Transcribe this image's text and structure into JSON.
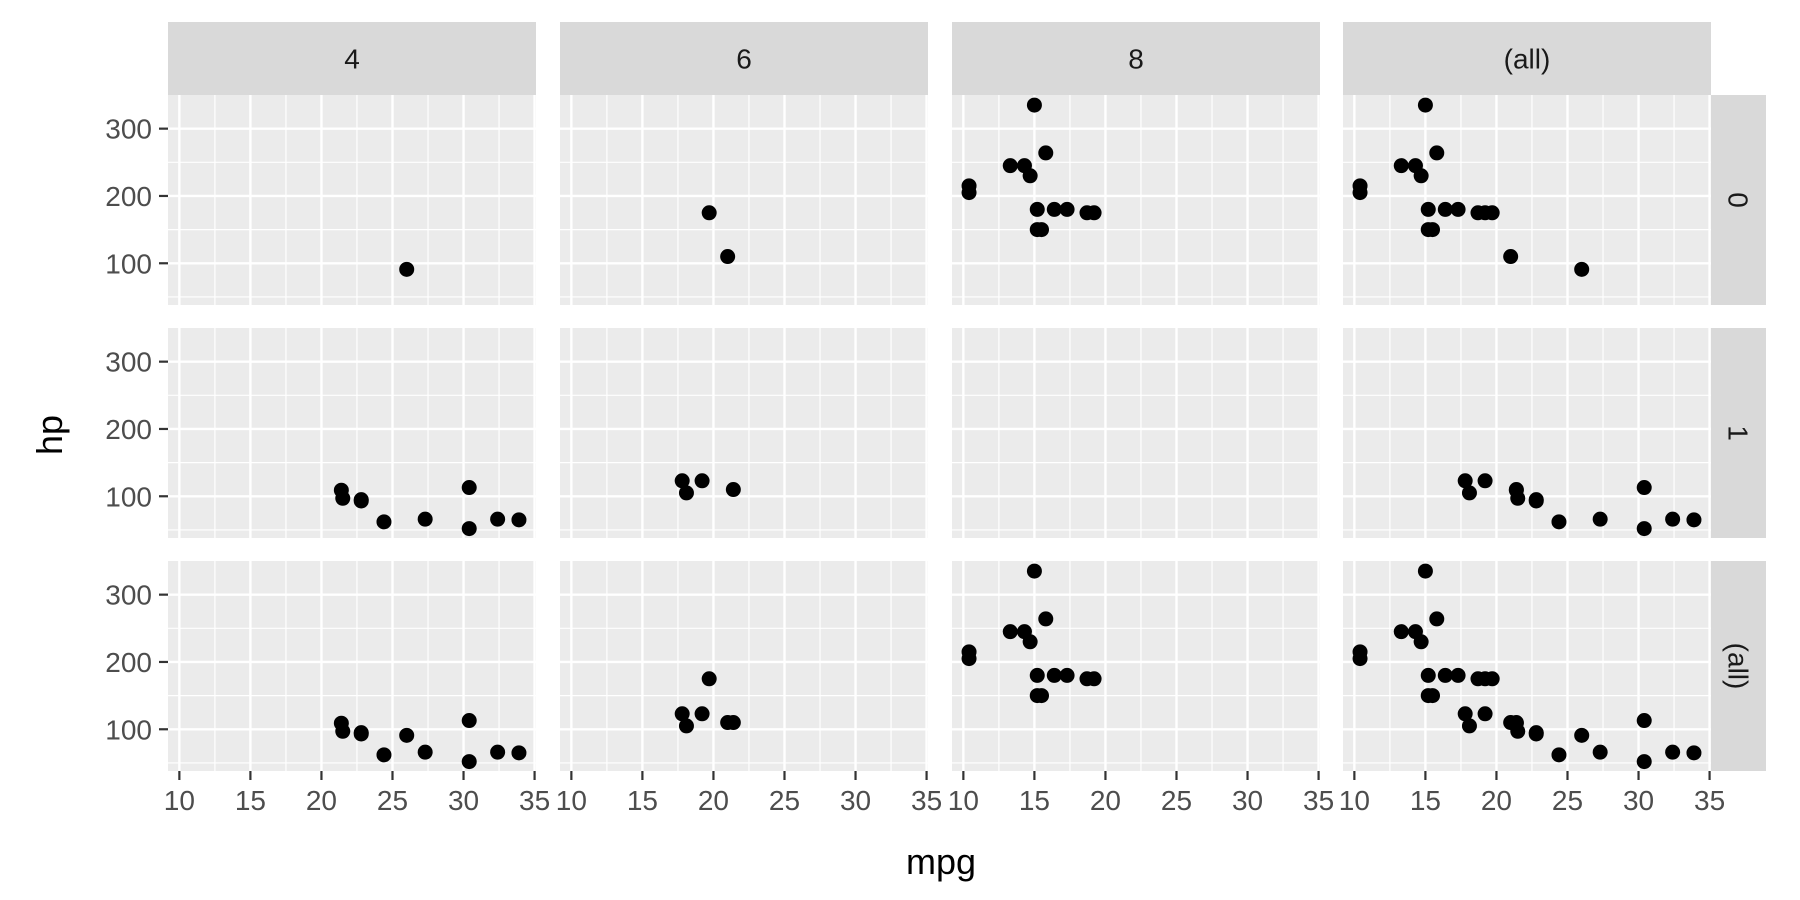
{
  "chart_data": {
    "type": "scatter",
    "xlabel": "mpg",
    "ylabel": "hp",
    "xlim": [
      9.2,
      35.1
    ],
    "ylim": [
      38,
      350
    ],
    "x_ticks": [
      10,
      15,
      20,
      25,
      30,
      35
    ],
    "x_tick_labels": [
      "10",
      "15",
      "20",
      "25",
      "30",
      "35"
    ],
    "y_ticks": [
      100,
      200,
      300
    ],
    "y_tick_labels": [
      "100",
      "200",
      "300"
    ],
    "column_strips": [
      "4",
      "6",
      "8",
      "(all)"
    ],
    "row_strips": [
      "0",
      "1",
      "(all)"
    ],
    "colors": {
      "panel_background": "#ebebeb",
      "grid": "#ffffff",
      "strip_background": "#d9d9d9",
      "point": "#000000"
    },
    "panels": [
      {
        "column": "4",
        "row": "0",
        "points": [
          [
            26.0,
            91
          ]
        ]
      },
      {
        "column": "6",
        "row": "0",
        "points": [
          [
            19.7,
            175
          ],
          [
            21.0,
            110
          ]
        ]
      },
      {
        "column": "8",
        "row": "0",
        "points": [
          [
            10.4,
            205
          ],
          [
            10.4,
            215
          ],
          [
            13.3,
            245
          ],
          [
            14.3,
            245
          ],
          [
            14.7,
            230
          ],
          [
            15.0,
            335
          ],
          [
            15.2,
            180
          ],
          [
            15.2,
            150
          ],
          [
            15.5,
            150
          ],
          [
            15.8,
            264
          ],
          [
            16.4,
            180
          ],
          [
            17.3,
            180
          ],
          [
            18.7,
            175
          ],
          [
            19.2,
            175
          ]
        ]
      },
      {
        "column": "(all)",
        "row": "0",
        "points": [
          [
            10.4,
            205
          ],
          [
            10.4,
            215
          ],
          [
            13.3,
            245
          ],
          [
            14.3,
            245
          ],
          [
            14.7,
            230
          ],
          [
            15.0,
            335
          ],
          [
            15.2,
            180
          ],
          [
            15.2,
            150
          ],
          [
            15.5,
            150
          ],
          [
            15.8,
            264
          ],
          [
            16.4,
            180
          ],
          [
            17.3,
            180
          ],
          [
            18.7,
            175
          ],
          [
            19.2,
            175
          ],
          [
            19.7,
            175
          ],
          [
            21.0,
            110
          ],
          [
            26.0,
            91
          ]
        ]
      },
      {
        "column": "4",
        "row": "1",
        "points": [
          [
            21.4,
            109
          ],
          [
            21.5,
            97
          ],
          [
            22.8,
            93
          ],
          [
            22.8,
            95
          ],
          [
            24.4,
            62
          ],
          [
            27.3,
            66
          ],
          [
            30.4,
            52
          ],
          [
            30.4,
            113
          ],
          [
            32.4,
            66
          ],
          [
            33.9,
            65
          ]
        ]
      },
      {
        "column": "6",
        "row": "1",
        "points": [
          [
            17.8,
            123
          ],
          [
            18.1,
            105
          ],
          [
            19.2,
            123
          ],
          [
            21.4,
            110
          ]
        ]
      },
      {
        "column": "8",
        "row": "1",
        "points": []
      },
      {
        "column": "(all)",
        "row": "1",
        "points": [
          [
            17.8,
            123
          ],
          [
            18.1,
            105
          ],
          [
            19.2,
            123
          ],
          [
            21.4,
            110
          ],
          [
            21.4,
            109
          ],
          [
            21.5,
            97
          ],
          [
            22.8,
            93
          ],
          [
            22.8,
            95
          ],
          [
            24.4,
            62
          ],
          [
            27.3,
            66
          ],
          [
            30.4,
            52
          ],
          [
            30.4,
            113
          ],
          [
            32.4,
            66
          ],
          [
            33.9,
            65
          ]
        ]
      },
      {
        "column": "4",
        "row": "(all)",
        "points": [
          [
            21.4,
            109
          ],
          [
            21.5,
            97
          ],
          [
            22.8,
            93
          ],
          [
            22.8,
            95
          ],
          [
            24.4,
            62
          ],
          [
            26.0,
            91
          ],
          [
            27.3,
            66
          ],
          [
            30.4,
            52
          ],
          [
            30.4,
            113
          ],
          [
            32.4,
            66
          ],
          [
            33.9,
            65
          ]
        ]
      },
      {
        "column": "6",
        "row": "(all)",
        "points": [
          [
            17.8,
            123
          ],
          [
            18.1,
            105
          ],
          [
            19.2,
            123
          ],
          [
            19.7,
            175
          ],
          [
            21.0,
            110
          ],
          [
            21.4,
            110
          ]
        ]
      },
      {
        "column": "8",
        "row": "(all)",
        "points": [
          [
            10.4,
            205
          ],
          [
            10.4,
            215
          ],
          [
            13.3,
            245
          ],
          [
            14.3,
            245
          ],
          [
            14.7,
            230
          ],
          [
            15.0,
            335
          ],
          [
            15.2,
            180
          ],
          [
            15.2,
            150
          ],
          [
            15.5,
            150
          ],
          [
            15.8,
            264
          ],
          [
            16.4,
            180
          ],
          [
            17.3,
            180
          ],
          [
            18.7,
            175
          ],
          [
            19.2,
            175
          ]
        ]
      },
      {
        "column": "(all)",
        "row": "(all)",
        "points": [
          [
            10.4,
            205
          ],
          [
            10.4,
            215
          ],
          [
            13.3,
            245
          ],
          [
            14.3,
            245
          ],
          [
            14.7,
            230
          ],
          [
            15.0,
            335
          ],
          [
            15.2,
            180
          ],
          [
            15.2,
            150
          ],
          [
            15.5,
            150
          ],
          [
            15.8,
            264
          ],
          [
            16.4,
            180
          ],
          [
            17.3,
            180
          ],
          [
            17.8,
            123
          ],
          [
            18.1,
            105
          ],
          [
            18.7,
            175
          ],
          [
            19.2,
            175
          ],
          [
            19.2,
            123
          ],
          [
            19.7,
            175
          ],
          [
            21.0,
            110
          ],
          [
            21.4,
            110
          ],
          [
            21.4,
            109
          ],
          [
            21.5,
            97
          ],
          [
            22.8,
            93
          ],
          [
            22.8,
            95
          ],
          [
            24.4,
            62
          ],
          [
            26.0,
            91
          ],
          [
            27.3,
            66
          ],
          [
            30.4,
            52
          ],
          [
            30.4,
            113
          ],
          [
            32.4,
            66
          ],
          [
            33.9,
            65
          ]
        ]
      }
    ]
  }
}
